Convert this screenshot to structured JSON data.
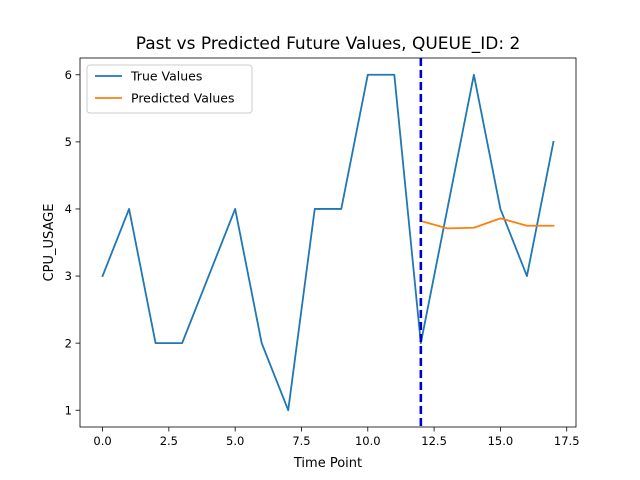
{
  "chart_data": {
    "type": "line",
    "title": "Past vs Predicted Future Values, QUEUE_ID: 2",
    "xlabel": "Time Point",
    "ylabel": "CPU_USAGE",
    "xlim": [
      -0.85,
      17.85
    ],
    "ylim": [
      0.75,
      6.25
    ],
    "xticks": [
      0.0,
      2.5,
      5.0,
      7.5,
      10.0,
      12.5,
      15.0,
      17.5
    ],
    "xtick_labels": [
      "0.0",
      "2.5",
      "5.0",
      "7.5",
      "10.0",
      "12.5",
      "15.0",
      "17.5"
    ],
    "yticks": [
      1,
      2,
      3,
      4,
      5,
      6
    ],
    "ytick_labels": [
      "1",
      "2",
      "3",
      "4",
      "5",
      "6"
    ],
    "grid": false,
    "legend_position": "top-left",
    "series": [
      {
        "name": "True Values",
        "color": "#1f77b4",
        "x": [
          0,
          1,
          2,
          3,
          4,
          5,
          6,
          7,
          8,
          9,
          10,
          11,
          12,
          13,
          14,
          15,
          16,
          17
        ],
        "y": [
          3,
          4,
          2,
          2,
          3,
          4,
          2,
          1,
          4,
          4,
          6,
          6,
          2,
          4,
          6,
          4,
          3,
          5
        ]
      },
      {
        "name": "Predicted Values",
        "color": "#ff7f0e",
        "x": [
          12,
          13,
          14,
          15,
          16,
          17
        ],
        "y": [
          3.82,
          3.71,
          3.72,
          3.86,
          3.75,
          3.75
        ]
      }
    ],
    "annotations": [
      {
        "type": "vertical-line",
        "x": 12,
        "color": "#0000cc",
        "style": "dashed"
      }
    ]
  }
}
